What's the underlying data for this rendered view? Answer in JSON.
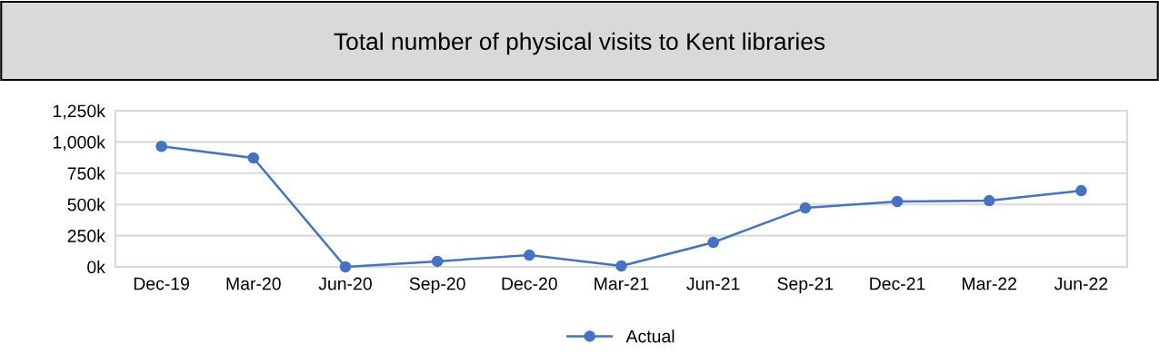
{
  "chart_data": {
    "type": "line",
    "title": "Total number of physical visits to Kent libraries",
    "categories": [
      "Dec-19",
      "Mar-20",
      "Jun-20",
      "Sep-20",
      "Dec-20",
      "Mar-21",
      "Jun-21",
      "Sep-21",
      "Dec-21",
      "Mar-22",
      "Jun-22"
    ],
    "series": [
      {
        "name": "Actual",
        "color": "#4472c4",
        "values": [
          965,
          872,
          0,
          44,
          94,
          7,
          196,
          472,
          523,
          530,
          610
        ]
      }
    ],
    "ylim": [
      0,
      1250
    ],
    "yticks": [
      {
        "value": 0,
        "label": "0k"
      },
      {
        "value": 250,
        "label": "250k"
      },
      {
        "value": 500,
        "label": "500k"
      },
      {
        "value": 750,
        "label": "750k"
      },
      {
        "value": 1000,
        "label": "1,000k"
      },
      {
        "value": 1250,
        "label": "1,250k"
      }
    ],
    "grid": "y",
    "legend": "bottom",
    "marker": "circle",
    "line_style": "solid"
  }
}
